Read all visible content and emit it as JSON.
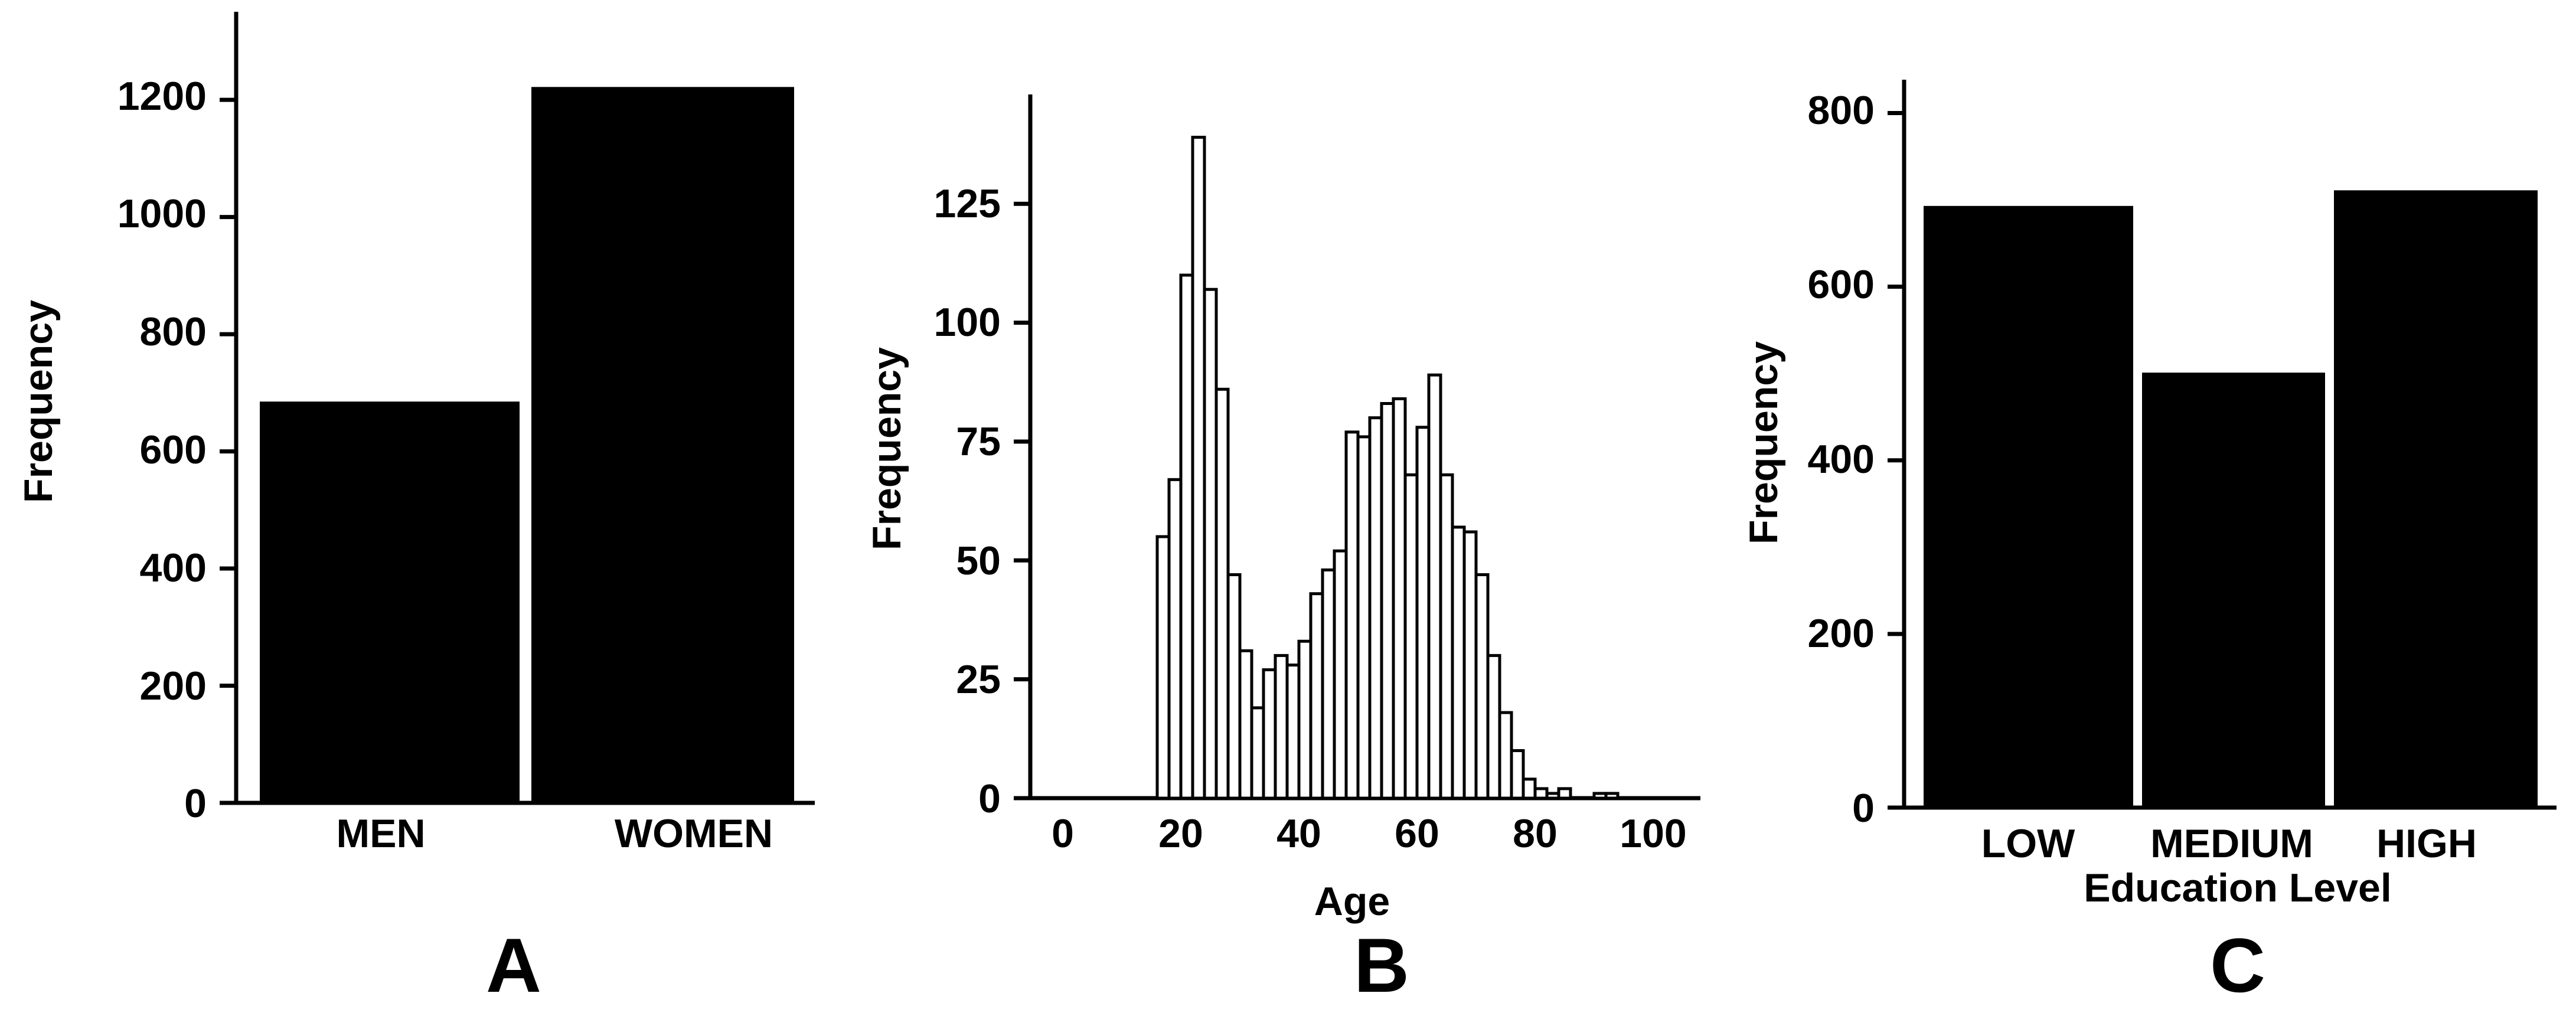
{
  "colors": {
    "bar_fill": "#000000",
    "hist_fill": "#ffffff",
    "stroke": "#000000",
    "background": "#ffffff"
  },
  "chart_data": [
    {
      "type": "bar",
      "panel_label": "A",
      "categories": [
        "MEN",
        "WOMEN"
      ],
      "values": [
        685,
        1222
      ],
      "ylabel": "Frequency",
      "xlabel": "",
      "ylim": [
        0,
        1310
      ],
      "yticks": [
        "0",
        "200",
        "400",
        "600",
        "800",
        "1000",
        "1200"
      ],
      "grid": false
    },
    {
      "type": "bar",
      "subtype": "histogram",
      "panel_label": "B",
      "bin_width": 2,
      "bin_start": 16,
      "x": [
        16,
        18,
        20,
        22,
        24,
        26,
        28,
        30,
        32,
        34,
        36,
        38,
        40,
        42,
        44,
        46,
        48,
        50,
        52,
        54,
        56,
        58,
        60,
        62,
        64,
        66,
        68,
        70,
        72,
        74,
        76,
        78,
        80,
        82,
        84,
        86,
        88,
        90,
        92,
        94,
        96,
        98
      ],
      "values": [
        55,
        67,
        110,
        139,
        107,
        86,
        47,
        31,
        19,
        27,
        30,
        28,
        33,
        43,
        48,
        52,
        77,
        76,
        80,
        83,
        84,
        68,
        78,
        89,
        68,
        57,
        56,
        47,
        30,
        18,
        10,
        4,
        2,
        1,
        2,
        0,
        0,
        1,
        1,
        0,
        0,
        0
      ],
      "xlabel": "Age",
      "ylabel": "Frequency",
      "xlim": [
        -2,
        104
      ],
      "ylim": [
        0,
        148
      ],
      "xticks": [
        "0",
        "20",
        "40",
        "60",
        "80",
        "100"
      ],
      "yticks": [
        "0",
        "25",
        "50",
        "75",
        "100",
        "125"
      ],
      "grid": false
    },
    {
      "type": "bar",
      "panel_label": "C",
      "categories": [
        "LOW",
        "MEDIUM",
        "HIGH"
      ],
      "values": [
        693,
        501,
        711
      ],
      "xlabel": "Education Level",
      "ylabel": "Frequency",
      "ylim": [
        0,
        835
      ],
      "yticks": [
        "0",
        "200",
        "400",
        "600",
        "800"
      ],
      "grid": false
    }
  ]
}
